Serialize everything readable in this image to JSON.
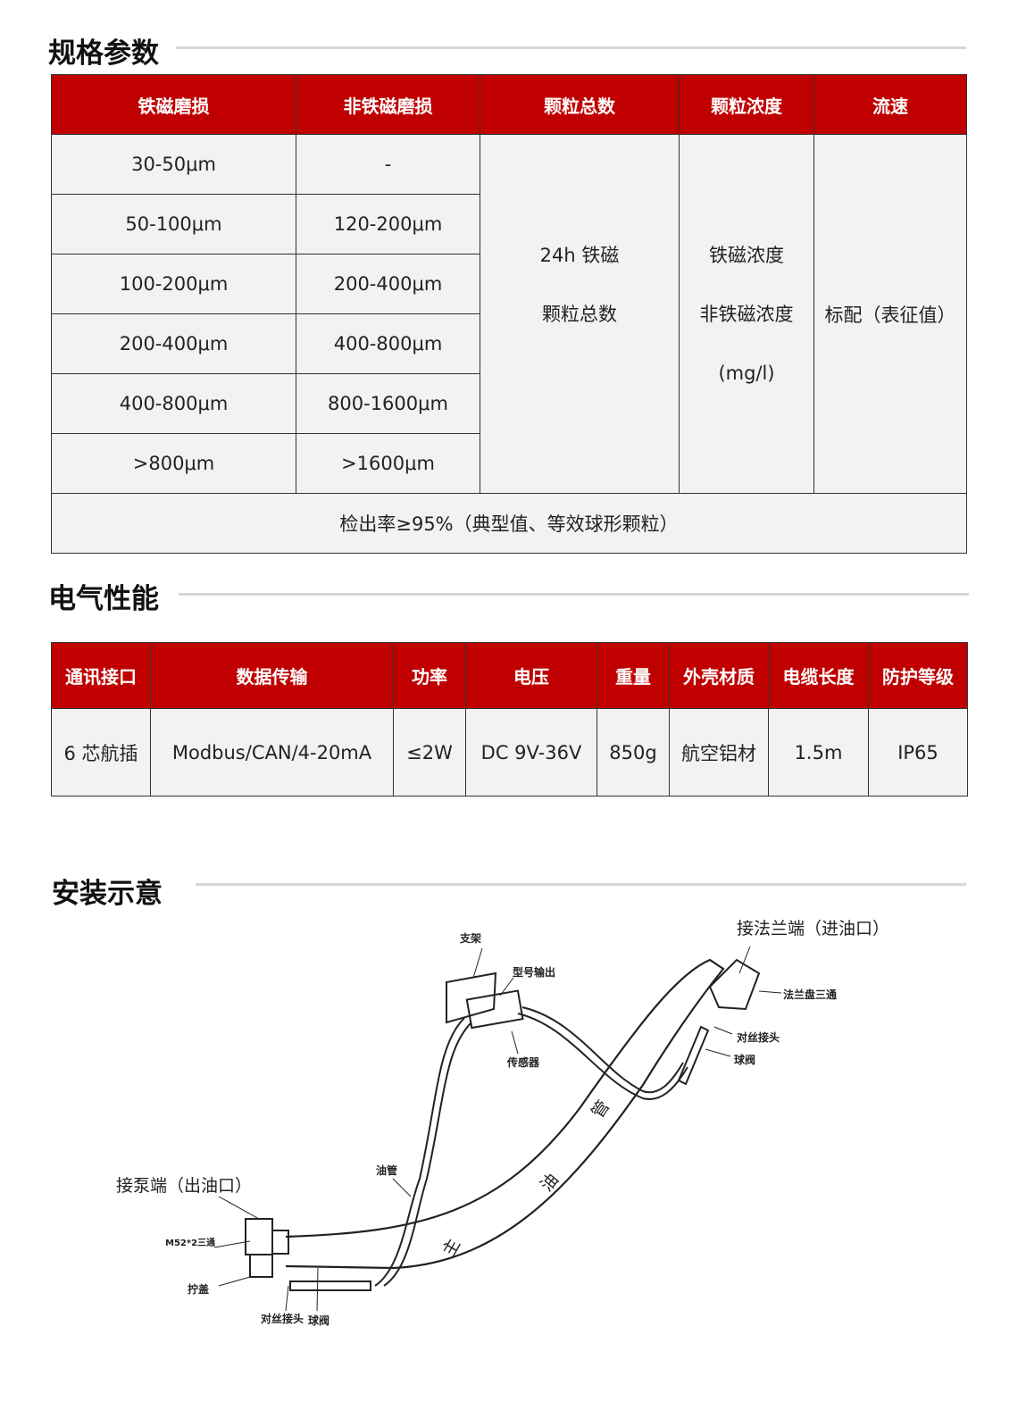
{
  "spec": {
    "title": "规格参数",
    "headers": [
      "铁磁磨损",
      "非铁磁磨损",
      "颗粒总数",
      "颗粒浓度",
      "流速"
    ],
    "ferro": [
      "30-50μm",
      "50-100μm",
      "100-200μm",
      "200-400μm",
      "400-800μm",
      ">800μm"
    ],
    "nonferro": [
      "-",
      "120-200μm",
      "200-400μm",
      "400-800μm",
      "800-1600μm",
      ">1600μm"
    ],
    "count": [
      "24h 铁磁",
      "颗粒总数"
    ],
    "concentration": [
      "铁磁浓度",
      "非铁磁浓度",
      "(mg/l)"
    ],
    "flow": "标配（表征值）",
    "footer": "检出率≥95%（典型值、等效球形颗粒）"
  },
  "electrical": {
    "title": "电气性能",
    "headers": [
      "通讯接口",
      "数据传输",
      "功率",
      "电压",
      "重量",
      "外壳材质",
      "电缆长度",
      "防护等级"
    ],
    "values": [
      "6 芯航插",
      "Modbus/CAN/4-20mA",
      "≤2W",
      "DC 9V-36V",
      "850g",
      "航空铝材",
      "1.5m",
      "IP65"
    ]
  },
  "install": {
    "title": "安装示意",
    "labels": {
      "inlet": "接法兰端（进油口）",
      "outlet": "接泵端（出油口）",
      "bracket": "支架",
      "output": "型号输出",
      "sensor": "传感器",
      "flange_tee": "法兰盘三通",
      "union1": "对丝接头",
      "valve1": "球阀",
      "oil_pipe": "油管",
      "tee": "M52*2三通",
      "cap": "拧盖",
      "union2": "对丝接头",
      "valve2": "球阀",
      "main_pipe": [
        "主",
        "油",
        "管"
      ]
    }
  }
}
